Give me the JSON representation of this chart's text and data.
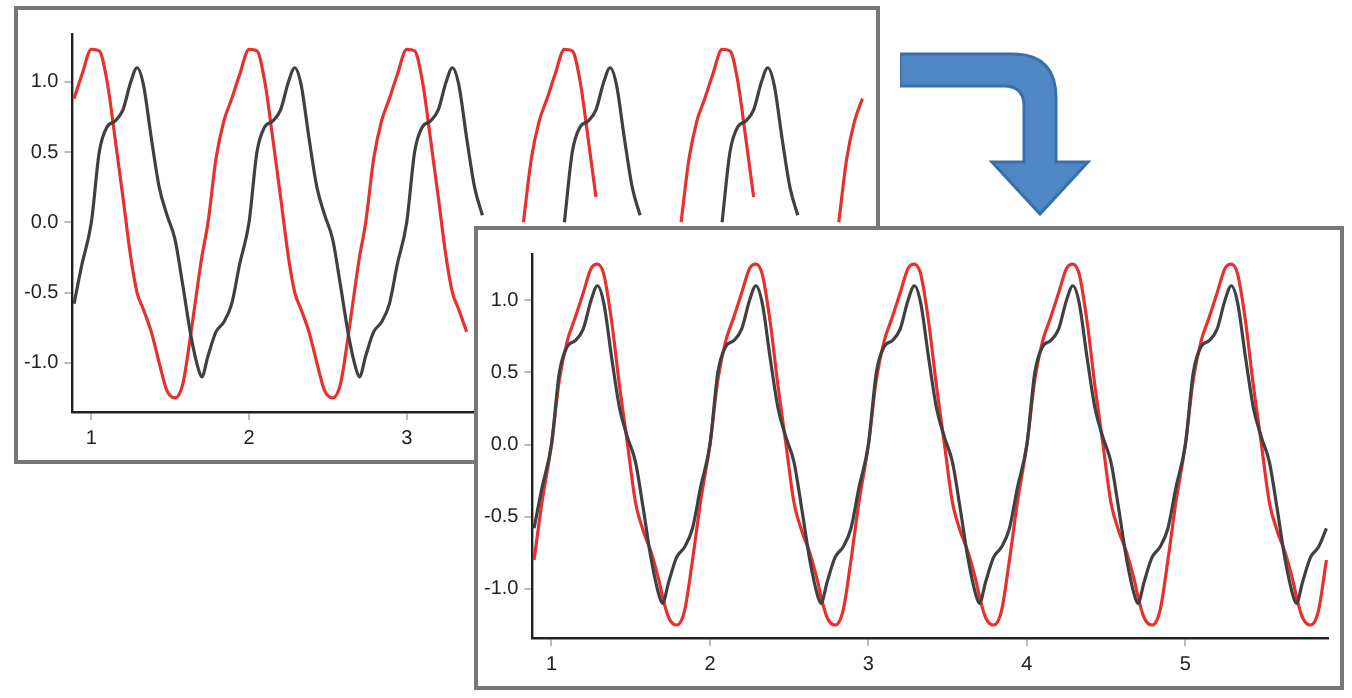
{
  "chart_data": [
    {
      "type": "line",
      "x": [
        0.89,
        0.94,
        1,
        1.05,
        1.1,
        1.15,
        1.2,
        1.25,
        1.29,
        1.33,
        1.38,
        1.43,
        1.48,
        1.53,
        1.58,
        1.63,
        1.68,
        1.7,
        1.74,
        1.79,
        1.84,
        1.89,
        1.94,
        2,
        2.05,
        2.1,
        2.15,
        2.2,
        2.25,
        2.29,
        2.33,
        2.38,
        2.43,
        2.48,
        2.53,
        2.58,
        2.63,
        2.68,
        2.7,
        2.74,
        2.79,
        2.84,
        2.89,
        2.94,
        3,
        3.05,
        3.1,
        3.15,
        3.2,
        3.25,
        3.29,
        3.33,
        3.38,
        3.43,
        3.48,
        3.53,
        3.58,
        3.63,
        3.68,
        3.7,
        3.74,
        3.79,
        3.84,
        3.89,
        3.94,
        4,
        4.05,
        4.1,
        4.15,
        4.2,
        4.25,
        4.29,
        4.33,
        4.38,
        4.43,
        4.48,
        4.53,
        4.58,
        4.63,
        4.68,
        4.7,
        4.74,
        4.79,
        4.84,
        4.89,
        4.94,
        5,
        5.05,
        5.1,
        5.15,
        5.2,
        5.25,
        5.29,
        5.33,
        5.38,
        5.43,
        5.48,
        5.53,
        5.58,
        5.63,
        5.68,
        5.7,
        5.74,
        5.79,
        5.84,
        5.89
      ],
      "series": [
        {
          "color": "#404040",
          "values": [
            -0.58,
            -0.3,
            0,
            0.5,
            0.68,
            0.72,
            0.8,
            1,
            1.1,
            0.98,
            0.6,
            0.25,
            0.05,
            -0.12,
            -0.45,
            -0.8,
            -1.05,
            -1.1,
            -0.95,
            -0.78,
            -0.71,
            -0.58,
            -0.3,
            0,
            0.5,
            0.68,
            0.72,
            0.8,
            1,
            1.1,
            0.98,
            0.6,
            0.25,
            0.05,
            -0.12,
            -0.45,
            -0.8,
            -1.05,
            -1.1,
            -0.95,
            -0.78,
            -0.71,
            -0.58,
            -0.3,
            0,
            0.5,
            0.68,
            0.72,
            0.8,
            1,
            1.1,
            0.98,
            0.6,
            0.25,
            0.05,
            null,
            null,
            null,
            null,
            null,
            null,
            null,
            null,
            null,
            null,
            0,
            0.5,
            0.68,
            0.72,
            0.8,
            1,
            1.1,
            0.98,
            0.6,
            0.25,
            0.05,
            null,
            null,
            null,
            null,
            null,
            null,
            null,
            null,
            null,
            null,
            0,
            0.5,
            0.68,
            0.72,
            0.8,
            1,
            1.1,
            0.98,
            0.6,
            0.25,
            0.05,
            null,
            null,
            null,
            null,
            null,
            null,
            null,
            null,
            null
          ]
        },
        {
          "color": "#e8312f",
          "values": [
            0.88,
            1.05,
            1.23,
            1.22,
            1,
            0.6,
            0.18,
            -0.25,
            -0.5,
            -0.62,
            -0.78,
            -1,
            -1.2,
            -1.25,
            -1.15,
            -0.8,
            -0.4,
            -0.25,
            0,
            0.45,
            0.72,
            0.88,
            1.05,
            1.23,
            1.22,
            1,
            0.6,
            0.18,
            -0.25,
            -0.5,
            -0.62,
            -0.78,
            -1,
            -1.2,
            -1.25,
            -1.15,
            -0.8,
            -0.4,
            -0.25,
            0,
            0.45,
            0.72,
            0.88,
            1.05,
            1.23,
            1.22,
            1,
            0.6,
            0.18,
            -0.25,
            -0.5,
            -0.62,
            -0.78,
            null,
            null,
            null,
            null,
            null,
            null,
            null,
            0,
            0.45,
            0.72,
            0.88,
            1.05,
            1.23,
            1.22,
            1,
            0.6,
            0.18,
            null,
            null,
            null,
            null,
            null,
            null,
            null,
            null,
            null,
            null,
            null,
            0,
            0.45,
            0.72,
            0.88,
            1.05,
            1.23,
            1.22,
            1,
            0.6,
            0.18,
            null,
            null,
            null,
            null,
            null,
            null,
            null,
            null,
            null,
            null,
            null,
            0,
            0.45,
            0.72,
            0.88
          ]
        }
      ],
      "xlim": [
        0.88,
        5.9
      ],
      "xticks": [
        1,
        2,
        3
      ],
      "ylim": [
        -1.35,
        1.34
      ],
      "yticks": [
        {
          "value": -1,
          "label": "-1.0"
        },
        {
          "value": -0.5,
          "label": "-0.5"
        },
        {
          "value": 0,
          "label": "0.0"
        },
        {
          "value": 0.5,
          "label": "0.5"
        },
        {
          "value": 1,
          "label": "1.0"
        }
      ]
    },
    {
      "type": "line",
      "x": [
        0.89,
        0.94,
        1,
        1.05,
        1.1,
        1.15,
        1.2,
        1.25,
        1.29,
        1.33,
        1.38,
        1.43,
        1.48,
        1.53,
        1.58,
        1.63,
        1.68,
        1.7,
        1.74,
        1.79,
        1.84,
        1.89,
        1.94,
        2,
        2.05,
        2.1,
        2.15,
        2.2,
        2.25,
        2.29,
        2.33,
        2.38,
        2.43,
        2.48,
        2.53,
        2.58,
        2.63,
        2.68,
        2.7,
        2.74,
        2.79,
        2.84,
        2.89,
        2.94,
        3,
        3.05,
        3.1,
        3.15,
        3.2,
        3.25,
        3.29,
        3.33,
        3.38,
        3.43,
        3.48,
        3.53,
        3.58,
        3.63,
        3.68,
        3.7,
        3.74,
        3.79,
        3.84,
        3.89,
        3.94,
        4,
        4.05,
        4.1,
        4.15,
        4.2,
        4.25,
        4.29,
        4.33,
        4.38,
        4.43,
        4.48,
        4.53,
        4.58,
        4.63,
        4.68,
        4.7,
        4.74,
        4.79,
        4.84,
        4.89,
        4.94,
        5,
        5.05,
        5.1,
        5.15,
        5.2,
        5.25,
        5.29,
        5.33,
        5.38,
        5.43,
        5.48,
        5.53,
        5.58,
        5.63,
        5.68,
        5.7,
        5.74,
        5.79,
        5.84,
        5.89
      ],
      "series": [
        {
          "color": "#404040",
          "values": [
            -0.58,
            -0.3,
            0,
            0.5,
            0.68,
            0.72,
            0.8,
            1,
            1.1,
            0.98,
            0.6,
            0.25,
            0.05,
            -0.12,
            -0.45,
            -0.8,
            -1.05,
            -1.1,
            -0.95,
            -0.78,
            -0.71,
            -0.58,
            -0.3,
            0,
            0.5,
            0.68,
            0.72,
            0.8,
            1,
            1.1,
            0.98,
            0.6,
            0.25,
            0.05,
            -0.12,
            -0.45,
            -0.8,
            -1.05,
            -1.1,
            -0.95,
            -0.78,
            -0.71,
            -0.58,
            -0.3,
            0,
            0.5,
            0.68,
            0.72,
            0.8,
            1,
            1.1,
            0.98,
            0.6,
            0.25,
            0.05,
            -0.12,
            -0.45,
            -0.8,
            -1.05,
            -1.1,
            -0.95,
            -0.78,
            -0.71,
            -0.58,
            -0.3,
            0,
            0.5,
            0.68,
            0.72,
            0.8,
            1,
            1.1,
            0.98,
            0.6,
            0.25,
            0.05,
            -0.12,
            -0.45,
            -0.8,
            -1.05,
            -1.1,
            -0.95,
            -0.78,
            -0.71,
            -0.58,
            -0.3,
            0,
            0.5,
            0.68,
            0.72,
            0.8,
            1,
            1.1,
            0.98,
            0.6,
            0.25,
            0.05,
            -0.12,
            -0.45,
            -0.8,
            -1.05,
            -1.1,
            -0.95,
            -0.78,
            -0.71,
            -0.58
          ]
        },
        {
          "color": "#e8312f",
          "values": [
            -0.8,
            -0.4,
            0,
            0.45,
            0.72,
            0.88,
            1.05,
            1.22,
            1.25,
            1.18,
            0.85,
            0.4,
            0,
            -0.4,
            -0.6,
            -0.75,
            -0.95,
            -1.05,
            -1.2,
            -1.25,
            -1.15,
            -0.8,
            -0.4,
            0,
            0.45,
            0.72,
            0.88,
            1.05,
            1.22,
            1.25,
            1.18,
            0.85,
            0.4,
            0,
            -0.4,
            -0.6,
            -0.75,
            -0.95,
            -1.05,
            -1.2,
            -1.25,
            -1.15,
            -0.8,
            -0.4,
            0,
            0.45,
            0.72,
            0.88,
            1.05,
            1.22,
            1.25,
            1.18,
            0.85,
            0.4,
            0,
            -0.4,
            -0.6,
            -0.75,
            -0.95,
            -1.05,
            -1.2,
            -1.25,
            -1.15,
            -0.8,
            -0.4,
            0,
            0.45,
            0.72,
            0.88,
            1.05,
            1.22,
            1.25,
            1.18,
            0.85,
            0.4,
            0,
            -0.4,
            -0.6,
            -0.75,
            -0.95,
            -1.05,
            -1.2,
            -1.25,
            -1.15,
            -0.8,
            -0.4,
            0,
            0.45,
            0.72,
            0.88,
            1.05,
            1.22,
            1.25,
            1.18,
            0.85,
            0.4,
            0,
            -0.4,
            -0.6,
            -0.75,
            -0.95,
            -1.05,
            -1.2,
            -1.25,
            -1.15,
            -0.8
          ]
        }
      ],
      "xlim": [
        0.88,
        5.9
      ],
      "xticks": [
        1,
        2,
        3,
        4,
        5
      ],
      "ylim": [
        -1.34,
        1.32
      ],
      "yticks": [
        {
          "value": -1,
          "label": "-1.0"
        },
        {
          "value": -0.5,
          "label": "-0.5"
        },
        {
          "value": 0,
          "label": "0.0"
        },
        {
          "value": 0.5,
          "label": "0.5"
        },
        {
          "value": 1,
          "label": "1.0"
        }
      ]
    }
  ]
}
